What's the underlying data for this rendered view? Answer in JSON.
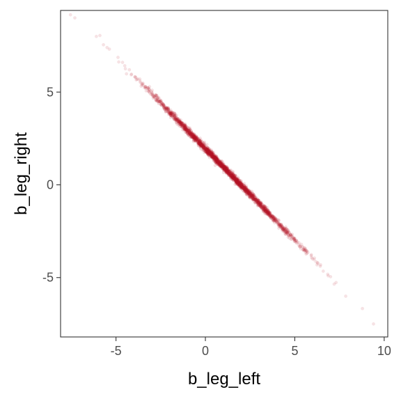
{
  "chart_data": {
    "type": "scatter",
    "title": "",
    "xlabel": "b_leg_left",
    "ylabel": "b_leg_right",
    "xlim": [
      -8.1,
      10.2
    ],
    "ylim": [
      -8.2,
      9.4
    ],
    "x_ticks": [
      -5,
      0,
      5,
      10
    ],
    "y_ticks": [
      -5,
      0,
      5
    ],
    "x_tick_labels": [
      "-5",
      "0",
      "5",
      "10"
    ],
    "y_tick_labels": [
      "-5",
      "0",
      "5"
    ],
    "grid": false,
    "legend": "none",
    "point_color": "#b2182b",
    "point_alpha": 0.12,
    "relationship": {
      "slope": -0.985,
      "intercept": 1.95,
      "noise_sd": 0.09
    },
    "n_points": 2400,
    "highlighted_points": [
      {
        "x": -7.3,
        "y": 9.0
      },
      {
        "x": -6.1,
        "y": 8.0
      },
      {
        "x": -5.9,
        "y": 8.05
      },
      {
        "x": -5.7,
        "y": 7.55
      },
      {
        "x": -5.5,
        "y": 7.4
      },
      {
        "x": 7.0,
        "y": -4.95
      },
      {
        "x": 7.2,
        "y": -5.35
      },
      {
        "x": 7.85,
        "y": -6.0
      },
      {
        "x": 9.4,
        "y": -7.5
      }
    ]
  }
}
